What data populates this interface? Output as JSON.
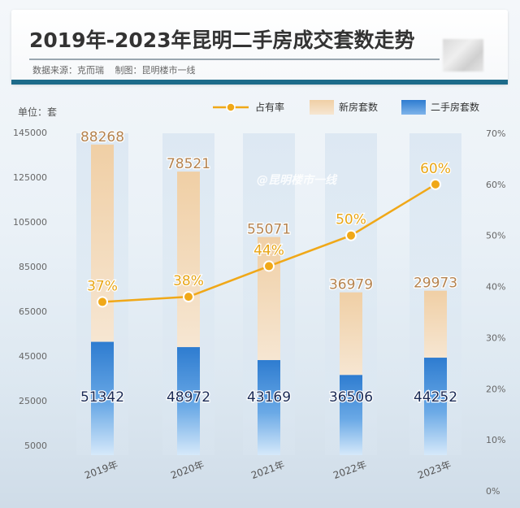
{
  "header": {
    "title": "2019年-2023年昆明二手房成交套数走势",
    "source": "数据来源：克而瑞",
    "maker": "制图：昆明楼市一线"
  },
  "watermark": "@昆明楼市一线",
  "unit_label": "单位：套",
  "legend": {
    "rate": "占有率",
    "new": "新房套数",
    "second": "二手房套数"
  },
  "colors": {
    "line": "#f0a818",
    "new_top": "#f2d3ad",
    "new_bottom": "#f7e8d5",
    "second_top": "#2f7fd0",
    "second_bottom": "#cfe4f8",
    "new_label": "#b5834f",
    "second_label": "#1a2a55",
    "rate_label": "#e8a515"
  },
  "chart_data": {
    "type": "bar",
    "categories": [
      "2019年",
      "2020年",
      "2021年",
      "2022年",
      "2023年"
    ],
    "series": [
      {
        "name": "二手房套数",
        "values": [
          51342,
          48972,
          43169,
          36506,
          44252
        ]
      },
      {
        "name": "新房套数",
        "values": [
          88268,
          78521,
          55071,
          36979,
          29973
        ]
      },
      {
        "name": "占有率",
        "values": [
          37,
          38,
          44,
          50,
          60
        ],
        "labels": [
          "37%",
          "38%",
          "44%",
          "50%",
          "60%"
        ],
        "axis": "right",
        "type": "line"
      }
    ],
    "stacked": true,
    "y_ticks": [
      5000,
      25000,
      45000,
      65000,
      85000,
      105000,
      125000,
      145000
    ],
    "ylim": [
      0,
      145000
    ],
    "y2_ticks": [
      "0%",
      "10%",
      "20%",
      "30%",
      "40%",
      "50%",
      "60%",
      "70%"
    ],
    "y2lim": [
      0,
      70
    ],
    "legend_position": "top-right"
  }
}
